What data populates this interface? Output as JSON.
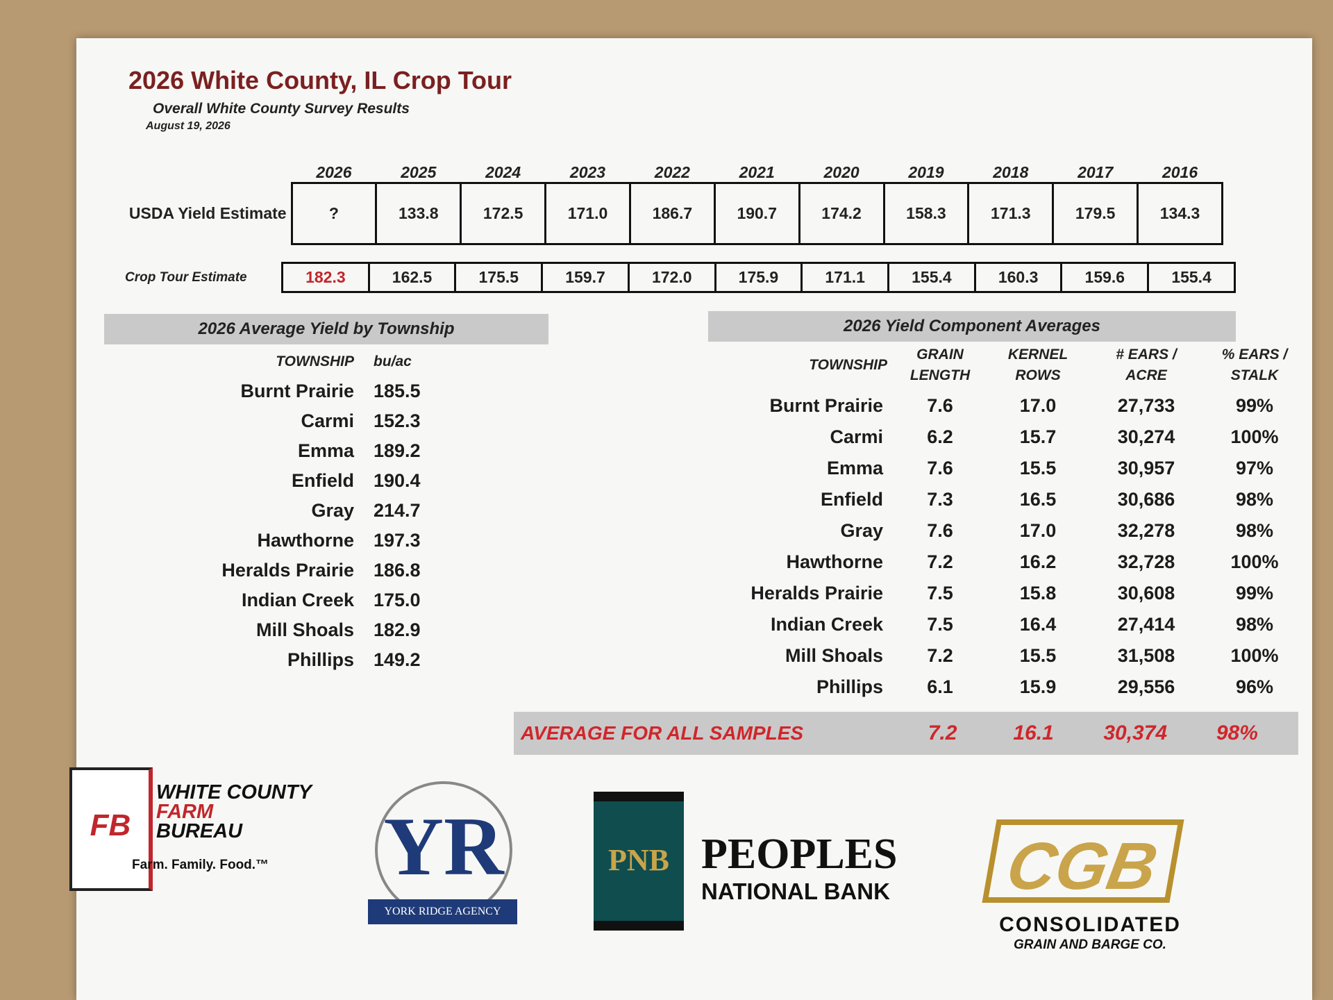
{
  "header": {
    "title": "2026 White County, IL Crop Tour",
    "subtitle": "Overall White County Survey Results",
    "date": "August 19, 2026"
  },
  "history": {
    "years": [
      "2026",
      "2025",
      "2024",
      "2023",
      "2022",
      "2021",
      "2020",
      "2019",
      "2018",
      "2017",
      "2016"
    ],
    "usda_label": "USDA Yield Estimate",
    "usda": [
      "?",
      "133.8",
      "172.5",
      "171.0",
      "186.7",
      "190.7",
      "174.2",
      "158.3",
      "171.3",
      "179.5",
      "134.3"
    ],
    "crop_tour_label": "Crop Tour Estimate",
    "crop_tour": [
      "182.3",
      "162.5",
      "175.5",
      "159.7",
      "172.0",
      "175.9",
      "171.1",
      "155.4",
      "160.3",
      "159.6",
      "155.4"
    ]
  },
  "township_yield": {
    "title": "2026 Average Yield by Township",
    "headers": [
      "TOWNSHIP",
      "bu/ac"
    ],
    "rows": [
      [
        "Burnt Prairie",
        "185.5"
      ],
      [
        "Carmi",
        "152.3"
      ],
      [
        "Emma",
        "189.2"
      ],
      [
        "Enfield",
        "190.4"
      ],
      [
        "Gray",
        "214.7"
      ],
      [
        "Hawthorne",
        "197.3"
      ],
      [
        "Heralds Prairie",
        "186.8"
      ],
      [
        "Indian Creek",
        "175.0"
      ],
      [
        "Mill Shoals",
        "182.9"
      ],
      [
        "Phillips",
        "149.2"
      ]
    ]
  },
  "components": {
    "title": "2026 Yield Component Averages",
    "headers": [
      "TOWNSHIP",
      "GRAIN LENGTH",
      "KERNEL ROWS",
      "# EARS / ACRE",
      "% EARS / STALK"
    ],
    "rows": [
      [
        "Burnt Prairie",
        "7.6",
        "17.0",
        "27,733",
        "99%"
      ],
      [
        "Carmi",
        "6.2",
        "15.7",
        "30,274",
        "100%"
      ],
      [
        "Emma",
        "7.6",
        "15.5",
        "30,957",
        "97%"
      ],
      [
        "Enfield",
        "7.3",
        "16.5",
        "30,686",
        "98%"
      ],
      [
        "Gray",
        "7.6",
        "17.0",
        "32,278",
        "98%"
      ],
      [
        "Hawthorne",
        "7.2",
        "16.2",
        "32,728",
        "100%"
      ],
      [
        "Heralds Prairie",
        "7.5",
        "15.8",
        "30,608",
        "99%"
      ],
      [
        "Indian Creek",
        "7.5",
        "16.4",
        "27,414",
        "98%"
      ],
      [
        "Mill Shoals",
        "7.2",
        "15.5",
        "31,508",
        "100%"
      ],
      [
        "Phillips",
        "6.1",
        "15.9",
        "29,556",
        "96%"
      ]
    ],
    "average": {
      "label": "AVERAGE FOR ALL SAMPLES",
      "values": [
        "7.2",
        "16.1",
        "30,374",
        "98%"
      ]
    }
  },
  "sponsors": [
    {
      "mark": "FB",
      "lines": [
        "WHITE COUNTY",
        "FARM",
        "BUREAU",
        "Farm. Family. Food.™"
      ]
    },
    {
      "mark": "YR",
      "lines": [
        "YORK RIDGE AGENCY"
      ]
    },
    {
      "mark": "PNB",
      "lines": [
        "PEOPLES",
        "NATIONAL BANK"
      ]
    },
    {
      "mark": "CGB",
      "lines": [
        "CONSOLIDATED",
        "GRAIN AND BARGE CO."
      ]
    }
  ]
}
